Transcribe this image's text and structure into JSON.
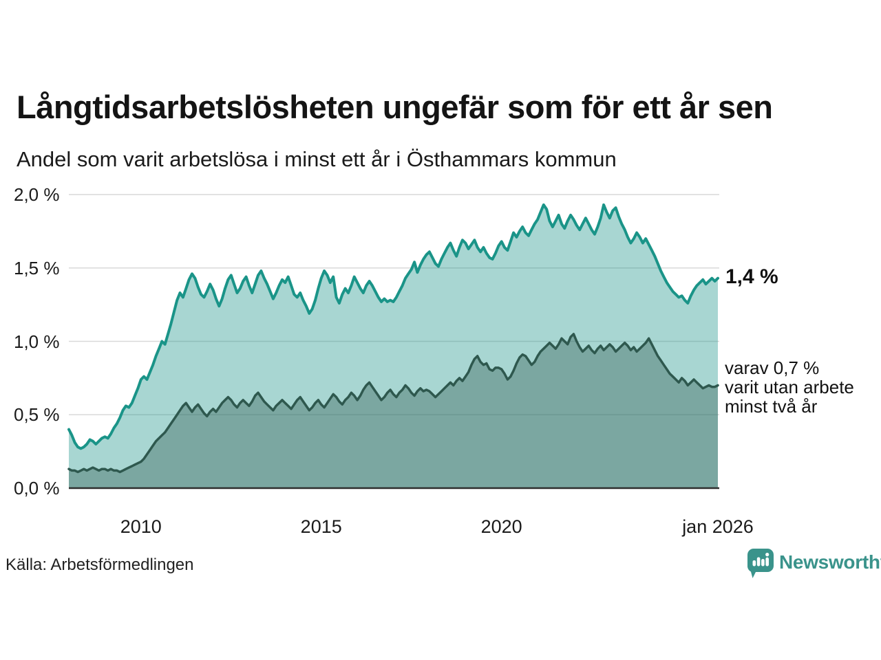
{
  "header": {
    "title": "Långtidsarbetslösheten ungefär som för ett år sen",
    "subtitle": "Andel som varit arbetslösa i minst ett år i Östhammars kommun"
  },
  "annotations": {
    "latest_value": "1,4 %",
    "secondary_line1": "varav 0,7 %",
    "secondary_line2": "varit utan arbete",
    "secondary_line3": "minst två år"
  },
  "footer": {
    "source": "Källa: Arbetsförmedlingen",
    "brand": "Newsworthy"
  },
  "colors": {
    "line_primary": "#1a9488",
    "fill_primary": "rgba(26,148,136,0.38)",
    "line_secondary": "#2e584e",
    "fill_secondary": "rgba(46,88,78,0.37)",
    "gridline": "#d9d9d9",
    "baseline": "#2e2e2e",
    "brand_teal": "#3a938b",
    "text": "#141414"
  },
  "chart_data": {
    "type": "area",
    "title": "Långtidsarbetslösheten ungefär som för ett år sen",
    "subtitle": "Andel som varit arbetslösa i minst ett år i Östhammars kommun",
    "unit": "%",
    "interval": "monthly",
    "x_start": "2008-01",
    "x_end": "2026-01",
    "ylim": [
      0,
      2.0
    ],
    "grid": true,
    "y_ticks": [
      {
        "label": "2,0 %",
        "value": 2.0
      },
      {
        "label": "1,5 %",
        "value": 1.5
      },
      {
        "label": "1,0 %",
        "value": 1.0
      },
      {
        "label": "0,5 %",
        "value": 0.5
      },
      {
        "label": "0,0 %",
        "value": 0.0
      }
    ],
    "x_ticks": [
      {
        "label": "2010",
        "year": 2010
      },
      {
        "label": "2015",
        "year": 2015
      },
      {
        "label": "2020",
        "year": 2020
      },
      {
        "label": "jan 2026",
        "year": 2026
      }
    ],
    "series": [
      {
        "name": "Andel som varit arbetslösa i minst ett år",
        "end_label": "1,4 %",
        "color": "#1a9488",
        "fill": "rgba(26,148,136,0.38)",
        "stroke_width": 4,
        "values": [
          0.4,
          0.36,
          0.31,
          0.28,
          0.27,
          0.28,
          0.3,
          0.33,
          0.32,
          0.3,
          0.32,
          0.34,
          0.35,
          0.34,
          0.37,
          0.41,
          0.44,
          0.48,
          0.53,
          0.56,
          0.55,
          0.58,
          0.63,
          0.68,
          0.74,
          0.76,
          0.74,
          0.79,
          0.84,
          0.9,
          0.95,
          1.0,
          0.98,
          1.05,
          1.12,
          1.2,
          1.28,
          1.33,
          1.3,
          1.36,
          1.42,
          1.46,
          1.43,
          1.37,
          1.32,
          1.3,
          1.34,
          1.39,
          1.35,
          1.29,
          1.24,
          1.29,
          1.36,
          1.42,
          1.45,
          1.39,
          1.33,
          1.36,
          1.41,
          1.44,
          1.38,
          1.33,
          1.39,
          1.45,
          1.48,
          1.43,
          1.39,
          1.34,
          1.29,
          1.33,
          1.38,
          1.42,
          1.4,
          1.44,
          1.38,
          1.32,
          1.3,
          1.33,
          1.28,
          1.24,
          1.19,
          1.22,
          1.28,
          1.36,
          1.43,
          1.48,
          1.45,
          1.4,
          1.44,
          1.3,
          1.26,
          1.32,
          1.36,
          1.33,
          1.38,
          1.44,
          1.4,
          1.36,
          1.33,
          1.38,
          1.41,
          1.38,
          1.34,
          1.3,
          1.27,
          1.29,
          1.27,
          1.28,
          1.27,
          1.3,
          1.34,
          1.38,
          1.43,
          1.46,
          1.49,
          1.54,
          1.47,
          1.52,
          1.56,
          1.59,
          1.61,
          1.57,
          1.53,
          1.51,
          1.56,
          1.6,
          1.64,
          1.67,
          1.62,
          1.58,
          1.64,
          1.69,
          1.67,
          1.63,
          1.66,
          1.69,
          1.64,
          1.61,
          1.64,
          1.6,
          1.57,
          1.56,
          1.6,
          1.65,
          1.68,
          1.64,
          1.62,
          1.68,
          1.74,
          1.71,
          1.75,
          1.78,
          1.74,
          1.72,
          1.76,
          1.8,
          1.83,
          1.88,
          1.93,
          1.9,
          1.82,
          1.78,
          1.82,
          1.86,
          1.8,
          1.77,
          1.82,
          1.86,
          1.83,
          1.79,
          1.76,
          1.8,
          1.84,
          1.8,
          1.76,
          1.73,
          1.78,
          1.84,
          1.93,
          1.88,
          1.84,
          1.89,
          1.91,
          1.85,
          1.8,
          1.76,
          1.71,
          1.67,
          1.7,
          1.74,
          1.71,
          1.67,
          1.7,
          1.66,
          1.62,
          1.58,
          1.53,
          1.48,
          1.44,
          1.4,
          1.37,
          1.34,
          1.32,
          1.3,
          1.31,
          1.28,
          1.26,
          1.31,
          1.35,
          1.38,
          1.4,
          1.42,
          1.39,
          1.41,
          1.43,
          1.41,
          1.43
        ]
      },
      {
        "name": "varav utan arbete minst två år",
        "end_label": "varav 0,7 % varit utan arbete minst två år",
        "color": "#2e584e",
        "fill": "rgba(46,88,78,0.37)",
        "stroke_width": 3.5,
        "values": [
          0.13,
          0.12,
          0.12,
          0.11,
          0.12,
          0.13,
          0.12,
          0.13,
          0.14,
          0.13,
          0.12,
          0.13,
          0.13,
          0.12,
          0.13,
          0.12,
          0.12,
          0.11,
          0.12,
          0.13,
          0.14,
          0.15,
          0.16,
          0.17,
          0.18,
          0.2,
          0.23,
          0.26,
          0.29,
          0.32,
          0.34,
          0.36,
          0.38,
          0.41,
          0.44,
          0.47,
          0.5,
          0.53,
          0.56,
          0.58,
          0.55,
          0.52,
          0.55,
          0.57,
          0.54,
          0.51,
          0.49,
          0.52,
          0.54,
          0.52,
          0.55,
          0.58,
          0.6,
          0.62,
          0.6,
          0.57,
          0.55,
          0.58,
          0.6,
          0.58,
          0.56,
          0.59,
          0.63,
          0.65,
          0.62,
          0.59,
          0.57,
          0.55,
          0.53,
          0.56,
          0.58,
          0.6,
          0.58,
          0.56,
          0.54,
          0.57,
          0.6,
          0.62,
          0.59,
          0.56,
          0.53,
          0.55,
          0.58,
          0.6,
          0.57,
          0.55,
          0.58,
          0.61,
          0.64,
          0.62,
          0.59,
          0.57,
          0.6,
          0.62,
          0.65,
          0.63,
          0.6,
          0.63,
          0.67,
          0.7,
          0.72,
          0.69,
          0.66,
          0.63,
          0.6,
          0.62,
          0.65,
          0.67,
          0.64,
          0.62,
          0.65,
          0.67,
          0.7,
          0.68,
          0.65,
          0.63,
          0.66,
          0.68,
          0.66,
          0.67,
          0.66,
          0.64,
          0.62,
          0.64,
          0.66,
          0.68,
          0.7,
          0.72,
          0.7,
          0.73,
          0.75,
          0.73,
          0.76,
          0.79,
          0.84,
          0.88,
          0.9,
          0.86,
          0.84,
          0.85,
          0.81,
          0.8,
          0.82,
          0.82,
          0.81,
          0.78,
          0.74,
          0.76,
          0.8,
          0.85,
          0.89,
          0.91,
          0.9,
          0.87,
          0.84,
          0.86,
          0.9,
          0.93,
          0.95,
          0.97,
          0.99,
          0.97,
          0.95,
          0.98,
          1.02,
          1.0,
          0.98,
          1.03,
          1.05,
          1.0,
          0.96,
          0.93,
          0.95,
          0.97,
          0.94,
          0.92,
          0.95,
          0.97,
          0.94,
          0.96,
          0.98,
          0.96,
          0.93,
          0.95,
          0.97,
          0.99,
          0.97,
          0.94,
          0.96,
          0.93,
          0.95,
          0.97,
          0.99,
          1.02,
          0.98,
          0.94,
          0.9,
          0.87,
          0.84,
          0.81,
          0.78,
          0.76,
          0.74,
          0.72,
          0.75,
          0.73,
          0.7,
          0.72,
          0.74,
          0.72,
          0.7,
          0.68,
          0.69,
          0.7,
          0.69,
          0.69,
          0.7
        ]
      }
    ]
  }
}
